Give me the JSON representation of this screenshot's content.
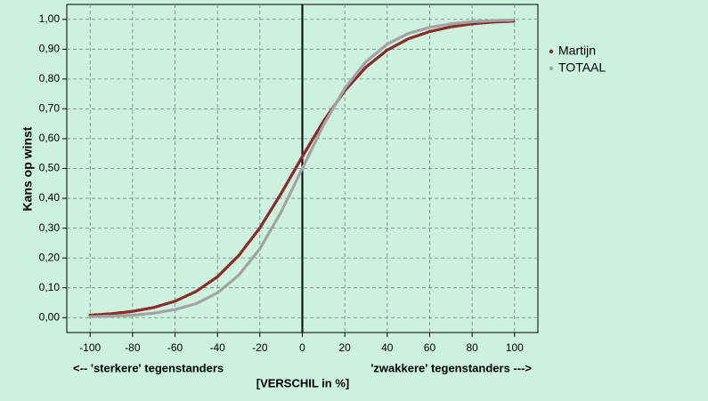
{
  "chart_data": {
    "type": "line",
    "ylabel": "Kans op winst",
    "xlabel": "[VERSCHIL in %]",
    "annotations": [
      "<-- 'sterkere' tegenstanders",
      "'zwakkere' tegenstanders --->"
    ],
    "x": [
      -100,
      -90,
      -80,
      -70,
      -60,
      -50,
      -40,
      -30,
      -20,
      -10,
      0,
      10,
      20,
      30,
      40,
      50,
      60,
      70,
      80,
      90,
      100
    ],
    "series": [
      {
        "name": "Martijn",
        "color": "#8b2b2b",
        "values": [
          0.008,
          0.013,
          0.021,
          0.034,
          0.055,
          0.088,
          0.137,
          0.208,
          0.301,
          0.416,
          0.54,
          0.659,
          0.761,
          0.84,
          0.897,
          0.935,
          0.959,
          0.975,
          0.985,
          0.991,
          0.994
        ]
      },
      {
        "name": "TOTAAL",
        "color": "#a3a3a3",
        "values": [
          0.003,
          0.005,
          0.008,
          0.015,
          0.027,
          0.047,
          0.083,
          0.142,
          0.231,
          0.354,
          0.5,
          0.646,
          0.769,
          0.858,
          0.917,
          0.953,
          0.973,
          0.985,
          0.992,
          0.996,
          0.998
        ]
      }
    ],
    "xlim": [
      -111,
      111
    ],
    "ylim": [
      -0.05,
      1.05
    ],
    "xticks": [
      -100,
      -80,
      -60,
      -40,
      -20,
      0,
      20,
      40,
      60,
      80,
      100
    ],
    "yticks": [
      {
        "value": 0,
        "label": "0,00"
      },
      {
        "value": 0.1,
        "label": "0,10"
      },
      {
        "value": 0.2,
        "label": "0,20"
      },
      {
        "value": 0.3,
        "label": "0,30"
      },
      {
        "value": 0.4,
        "label": "0,40"
      },
      {
        "value": 0.5,
        "label": "0,50"
      },
      {
        "value": 0.6,
        "label": "0,60"
      },
      {
        "value": 0.7,
        "label": "0,70"
      },
      {
        "value": 0.8,
        "label": "0,80"
      },
      {
        "value": 0.9,
        "label": "0,90"
      },
      {
        "value": 1,
        "label": "1,00"
      }
    ],
    "vline": 0,
    "grid": true,
    "legend": "right"
  }
}
